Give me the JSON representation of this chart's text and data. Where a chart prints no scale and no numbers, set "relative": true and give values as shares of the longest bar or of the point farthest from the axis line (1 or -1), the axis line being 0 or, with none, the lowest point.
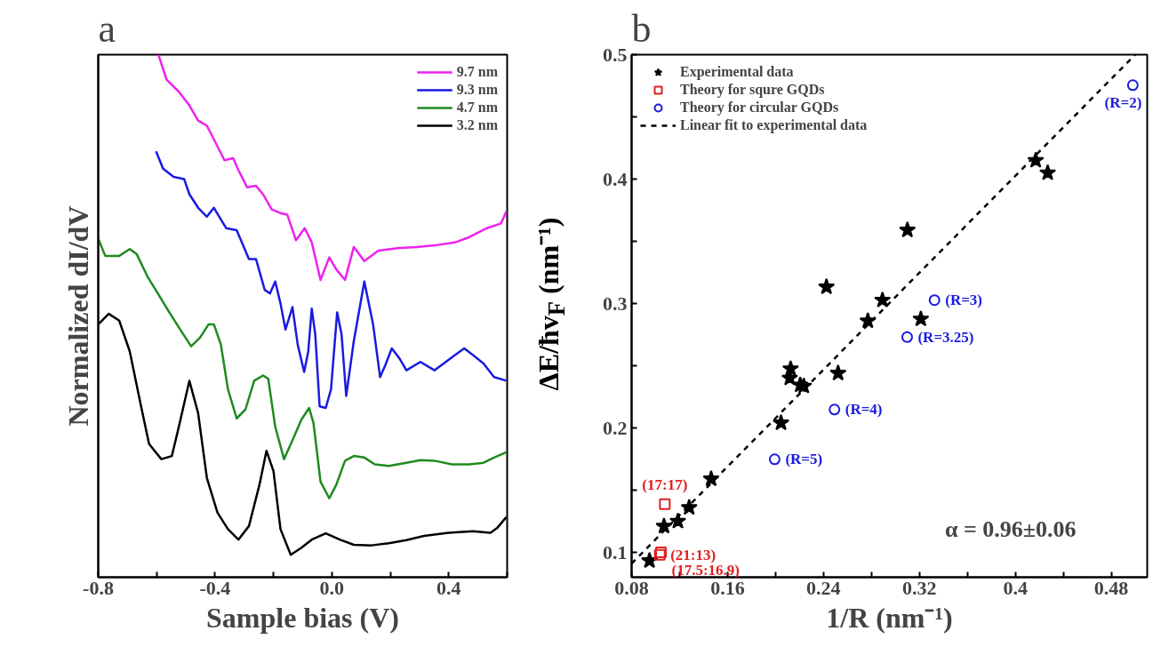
{
  "chart_data": [
    {
      "type": "line",
      "title": "a",
      "xlabel": "Sample bias (V)",
      "ylabel": "Normalized dI/dV",
      "relative": true,
      "tick_labels": "x",
      "legend": "top right",
      "line_style": "solid",
      "xlim": [
        -0.8,
        0.6
      ],
      "xticks": [
        -0.8,
        {
          "value": -0.6,
          "label": null
        },
        -0.4,
        {
          "value": -0.2,
          "label": null
        },
        {
          "value": 0.0,
          "label": "0.0"
        },
        {
          "value": 0.2,
          "label": null
        },
        0.4,
        {
          "value": 0.6,
          "label": null
        }
      ],
      "series": [
        {
          "name": "9.7 nm",
          "color": "#ee22ee",
          "x": [
            -0.594,
            -0.566,
            -0.524,
            -0.488,
            -0.458,
            -0.428,
            -0.404,
            -0.368,
            -0.338,
            -0.32,
            -0.29,
            -0.26,
            -0.236,
            -0.206,
            -0.177,
            -0.153,
            -0.123,
            -0.093,
            -0.069,
            -0.039,
            -0.009,
            0.015,
            0.045,
            0.075,
            0.111,
            0.159,
            0.231,
            0.291,
            0.351,
            0.423,
            0.471,
            0.531,
            0.579,
            0.597
          ],
          "values": [
            1.0,
            0.952,
            0.929,
            0.903,
            0.874,
            0.864,
            0.838,
            0.798,
            0.802,
            0.779,
            0.746,
            0.749,
            0.733,
            0.704,
            0.697,
            0.694,
            0.645,
            0.668,
            0.641,
            0.569,
            0.612,
            0.589,
            0.569,
            0.632,
            0.605,
            0.625,
            0.63,
            0.632,
            0.635,
            0.641,
            0.651,
            0.668,
            0.677,
            0.7
          ]
        },
        {
          "name": "9.3 nm",
          "color": "#1a1ae0",
          "x": [
            -0.602,
            -0.578,
            -0.542,
            -0.506,
            -0.488,
            -0.458,
            -0.428,
            -0.404,
            -0.362,
            -0.326,
            -0.284,
            -0.26,
            -0.23,
            -0.212,
            -0.194,
            -0.176,
            -0.159,
            -0.135,
            -0.117,
            -0.095,
            -0.081,
            -0.069,
            -0.057,
            -0.042,
            -0.021,
            -0.003,
            0.018,
            0.033,
            0.049,
            0.075,
            0.111,
            0.141,
            0.165,
            0.183,
            0.205,
            0.231,
            0.255,
            0.303,
            0.351,
            0.399,
            0.453,
            0.483,
            0.519,
            0.555,
            0.597
          ],
          "values": [
            0.815,
            0.782,
            0.766,
            0.762,
            0.733,
            0.707,
            0.69,
            0.707,
            0.668,
            0.664,
            0.609,
            0.609,
            0.55,
            0.543,
            0.566,
            0.524,
            0.474,
            0.517,
            0.445,
            0.393,
            0.432,
            0.514,
            0.465,
            0.327,
            0.324,
            0.36,
            0.507,
            0.465,
            0.347,
            0.452,
            0.566,
            0.484,
            0.383,
            0.406,
            0.438,
            0.419,
            0.396,
            0.412,
            0.396,
            0.416,
            0.438,
            0.425,
            0.409,
            0.383,
            0.376
          ]
        },
        {
          "name": "4.7 nm",
          "color": "#1f8a1f",
          "x": [
            -0.8,
            -0.776,
            -0.728,
            -0.692,
            -0.668,
            -0.632,
            -0.596,
            -0.56,
            -0.524,
            -0.482,
            -0.452,
            -0.422,
            -0.404,
            -0.38,
            -0.356,
            -0.326,
            -0.296,
            -0.266,
            -0.236,
            -0.218,
            -0.194,
            -0.164,
            -0.135,
            -0.105,
            -0.078,
            -0.063,
            -0.039,
            -0.009,
            0.015,
            0.045,
            0.075,
            0.111,
            0.147,
            0.195,
            0.255,
            0.303,
            0.351,
            0.411,
            0.471,
            0.519,
            0.555,
            0.597
          ],
          "values": [
            0.648,
            0.615,
            0.615,
            0.628,
            0.618,
            0.576,
            0.543,
            0.51,
            0.478,
            0.442,
            0.458,
            0.484,
            0.484,
            0.445,
            0.36,
            0.304,
            0.321,
            0.376,
            0.386,
            0.38,
            0.288,
            0.226,
            0.262,
            0.301,
            0.324,
            0.295,
            0.183,
            0.151,
            0.177,
            0.223,
            0.232,
            0.229,
            0.216,
            0.213,
            0.219,
            0.224,
            0.223,
            0.216,
            0.216,
            0.219,
            0.229,
            0.239
          ]
        },
        {
          "name": "3.2 nm",
          "color": "#000000",
          "x": [
            -0.8,
            -0.764,
            -0.728,
            -0.692,
            -0.656,
            -0.626,
            -0.584,
            -0.548,
            -0.524,
            -0.488,
            -0.458,
            -0.428,
            -0.392,
            -0.356,
            -0.32,
            -0.284,
            -0.248,
            -0.224,
            -0.2,
            -0.176,
            -0.141,
            -0.105,
            -0.069,
            -0.021,
            0.027,
            0.075,
            0.135,
            0.195,
            0.255,
            0.315,
            0.399,
            0.483,
            0.543,
            0.567,
            0.597
          ],
          "values": [
            0.484,
            0.504,
            0.491,
            0.432,
            0.334,
            0.255,
            0.226,
            0.232,
            0.288,
            0.376,
            0.314,
            0.19,
            0.124,
            0.092,
            0.072,
            0.098,
            0.177,
            0.242,
            0.203,
            0.092,
            0.043,
            0.056,
            0.072,
            0.084,
            0.072,
            0.062,
            0.061,
            0.065,
            0.071,
            0.079,
            0.085,
            0.088,
            0.085,
            0.095,
            0.115
          ]
        }
      ]
    },
    {
      "type": "scatter",
      "title": "b",
      "xlabel": "1/R (nm⁻¹)",
      "ylabel": "ΔE/ħv$_{F}$ (nm⁻¹)",
      "legend": "top left",
      "xlim": [
        0.08,
        0.51
      ],
      "ylim": [
        0.08,
        0.5
      ],
      "xticks": [
        0.08,
        {
          "value": 0.12,
          "label": null
        },
        0.16,
        {
          "value": 0.2,
          "label": null
        },
        0.24,
        {
          "value": 0.28,
          "label": null
        },
        0.32,
        {
          "value": 0.36,
          "label": null
        },
        0.4,
        {
          "value": 0.44,
          "label": null
        },
        0.48
      ],
      "yticks": [
        0.1,
        {
          "value": 0.15,
          "label": null
        },
        0.2,
        {
          "value": 0.25,
          "label": null
        },
        0.3,
        {
          "value": 0.35,
          "label": null
        },
        0.4,
        {
          "value": 0.45,
          "label": null
        },
        0.5
      ],
      "series": [
        {
          "name": "Experimental data",
          "type": "scatter",
          "marker": "star",
          "color": "#000000",
          "x": [
            0.0949,
            0.107,
            0.1186,
            0.128,
            0.1463,
            0.2046,
            0.2126,
            0.2119,
            0.2206,
            0.2236,
            0.2425,
            0.2522,
            0.277,
            0.2892,
            0.31,
            0.3212,
            0.417,
            0.427
          ],
          "values": [
            0.0933,
            0.121,
            0.125,
            0.136,
            0.159,
            0.204,
            0.2475,
            0.24,
            0.2345,
            0.2336,
            0.3133,
            0.244,
            0.286,
            0.3027,
            0.359,
            0.2875,
            0.415,
            0.405
          ]
        },
        {
          "name": "Theory for squre GQDs",
          "type": "scatter",
          "marker": "square",
          "color": "#e02020",
          "x": [
            0.1077,
            0.1035,
            0.1045
          ],
          "values": [
            0.1387,
            0.098,
            0.1
          ]
        },
        {
          "name": "Theory for circular GQDs",
          "type": "scatter",
          "marker": "circle",
          "color": "#1a1ae0",
          "x": [
            0.498,
            0.3326,
            0.3098,
            0.2492,
            0.1993
          ],
          "values": [
            0.4755,
            0.3027,
            0.273,
            0.2148,
            0.1748
          ]
        },
        {
          "name": "Linear fit to experimental data",
          "type": "line",
          "line_style": "dashed",
          "color": "#000000",
          "x": [
            0.08,
            0.5
          ],
          "values": [
            0.091,
            0.5
          ]
        }
      ],
      "annotations": [
        {
          "text": "(17:17)",
          "x": 0.1077,
          "y": 0.1387
        },
        {
          "text": "(21:13)",
          "x": 0.1035,
          "y": 0.098
        },
        {
          "text": "(17.5:16.9)",
          "x": 0.1045,
          "y": 0.1
        },
        {
          "text": "(R=5)",
          "x": 0.1993,
          "y": 0.1748
        },
        {
          "text": "(R=4)",
          "x": 0.2492,
          "y": 0.2148
        },
        {
          "text": "(R=3.25)",
          "x": 0.3098,
          "y": 0.273
        },
        {
          "text": "(R=3)",
          "x": 0.3326,
          "y": 0.3027
        },
        {
          "text": "(R=2)",
          "x": 0.498,
          "y": 0.4755
        },
        "α = 0.96±0.06"
      ]
    }
  ]
}
